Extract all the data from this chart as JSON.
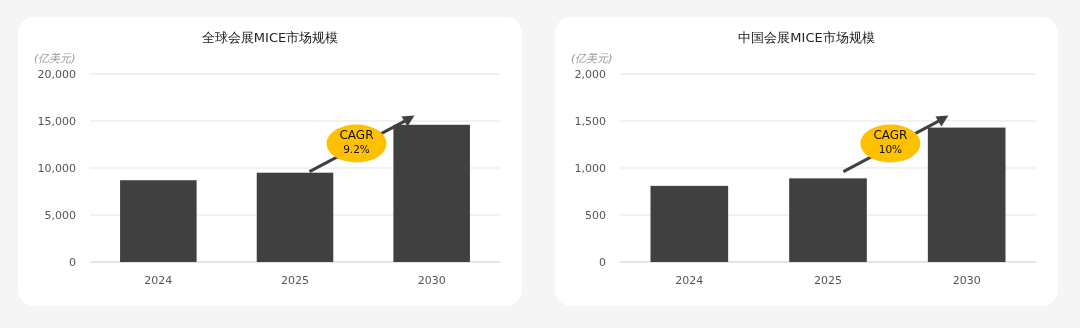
{
  "chart_data": [
    {
      "type": "bar",
      "title": "全球会展MICE市场规模",
      "ylabel": "(亿美元)",
      "categories": [
        "2024",
        "2025",
        "2030"
      ],
      "values": [
        8700,
        9500,
        14600
      ],
      "color": "#404040",
      "ylim": [
        0,
        20000
      ],
      "yticks": [
        {
          "value": 0,
          "label": "0"
        },
        {
          "value": 5000,
          "label": "5,000"
        },
        {
          "value": 10000,
          "label": "10,000"
        },
        {
          "value": 15000,
          "label": "15,000"
        },
        {
          "value": 20000,
          "label": "20,000"
        }
      ],
      "grid": "y",
      "annotations": [
        "CAGR",
        "9.2%"
      ]
    },
    {
      "type": "bar",
      "title": "中国会展MICE市场规模",
      "ylabel": "(亿美元)",
      "categories": [
        "2024",
        "2025",
        "2030"
      ],
      "values": [
        810,
        890,
        1430
      ],
      "color": "#404040",
      "ylim": [
        0,
        2000
      ],
      "yticks": [
        {
          "value": 0,
          "label": "0"
        },
        {
          "value": 500,
          "label": "500"
        },
        {
          "value": 1000,
          "label": "1,000"
        },
        {
          "value": 1500,
          "label": "1,500"
        },
        {
          "value": 2000,
          "label": "2,000"
        }
      ],
      "grid": "y",
      "annotations": [
        "CAGR",
        "10%"
      ]
    }
  ]
}
